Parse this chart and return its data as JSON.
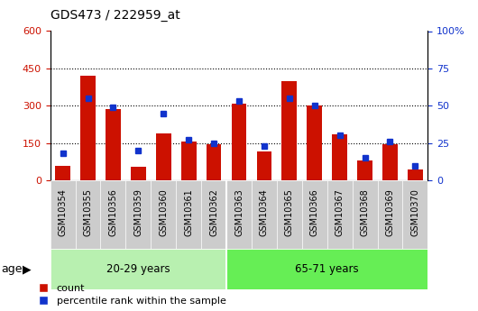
{
  "title": "GDS473 / 222959_at",
  "samples": [
    "GSM10354",
    "GSM10355",
    "GSM10356",
    "GSM10359",
    "GSM10360",
    "GSM10361",
    "GSM10362",
    "GSM10363",
    "GSM10364",
    "GSM10365",
    "GSM10366",
    "GSM10367",
    "GSM10368",
    "GSM10369",
    "GSM10370"
  ],
  "count": [
    60,
    420,
    285,
    55,
    190,
    155,
    145,
    310,
    115,
    400,
    300,
    185,
    80,
    145,
    45
  ],
  "percentile": [
    18,
    55,
    49,
    20,
    45,
    27,
    25,
    53,
    23,
    55,
    50,
    30,
    15,
    26,
    10
  ],
  "groups": [
    {
      "label": "20-29 years",
      "start": 0,
      "end": 7,
      "color": "#b8f0b0"
    },
    {
      "label": "65-71 years",
      "start": 7,
      "end": 15,
      "color": "#66ee55"
    }
  ],
  "ylim_left": [
    0,
    600
  ],
  "ylim_right": [
    0,
    100
  ],
  "yticks_left": [
    0,
    150,
    300,
    450,
    600
  ],
  "yticks_right": [
    0,
    25,
    50,
    75,
    100
  ],
  "bar_color": "#cc1100",
  "dot_color": "#1133cc",
  "age_label": "age",
  "legend_count": "count",
  "legend_percentile": "percentile rank within the sample",
  "left_axis_color": "#cc1100",
  "right_axis_color": "#1133cc",
  "xtick_bg_color": "#cccccc",
  "group_divider": 7
}
